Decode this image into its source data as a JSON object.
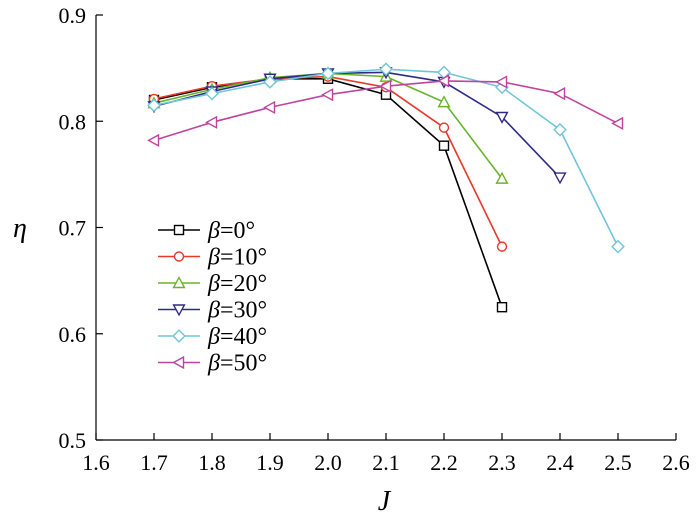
{
  "chart_data": {
    "type": "line",
    "xlabel": "J",
    "ylabel": "η",
    "xlim": [
      1.6,
      2.6
    ],
    "ylim": [
      0.5,
      0.9
    ],
    "xticks": [
      "1.6",
      "1.7",
      "1.8",
      "1.9",
      "2.0",
      "2.1",
      "2.2",
      "2.3",
      "2.4",
      "2.5",
      "2.6"
    ],
    "yticks": [
      "0.5",
      "0.6",
      "0.7",
      "0.8",
      "0.9"
    ],
    "grid": false,
    "legend_position": "left",
    "series": [
      {
        "name": "β=0°",
        "symbol": "β",
        "value_text": "=0°",
        "color": "#000000",
        "marker": "square",
        "x": [
          1.7,
          1.8,
          1.9,
          2.0,
          2.1,
          2.2,
          2.3
        ],
        "y": [
          0.82,
          0.832,
          0.84,
          0.84,
          0.825,
          0.777,
          0.625
        ]
      },
      {
        "name": "β=10°",
        "symbol": "β",
        "value_text": "=10°",
        "color": "#e8392b",
        "marker": "circle",
        "x": [
          1.7,
          1.8,
          1.9,
          2.0,
          2.1,
          2.2,
          2.3
        ],
        "y": [
          0.821,
          0.833,
          0.84,
          0.842,
          0.832,
          0.794,
          0.682
        ]
      },
      {
        "name": "β=20°",
        "symbol": "β",
        "value_text": "=20°",
        "color": "#6ab42d",
        "marker": "triangle-up",
        "x": [
          1.7,
          1.8,
          1.9,
          2.0,
          2.1,
          2.2,
          2.3
        ],
        "y": [
          0.817,
          0.83,
          0.841,
          0.845,
          0.842,
          0.818,
          0.746
        ]
      },
      {
        "name": "β=30°",
        "symbol": "β",
        "value_text": "=30°",
        "color": "#2e2b87",
        "marker": "triangle-down",
        "x": [
          1.7,
          1.8,
          1.9,
          2.0,
          2.1,
          2.2,
          2.3,
          2.4
        ],
        "y": [
          0.814,
          0.828,
          0.84,
          0.845,
          0.846,
          0.837,
          0.804,
          0.747
        ]
      },
      {
        "name": "β=40°",
        "symbol": "β",
        "value_text": "=40°",
        "color": "#6fc6d8",
        "marker": "diamond",
        "x": [
          1.7,
          1.8,
          1.9,
          2.0,
          2.1,
          2.2,
          2.3,
          2.4,
          2.5
        ],
        "y": [
          0.815,
          0.826,
          0.837,
          0.845,
          0.849,
          0.846,
          0.832,
          0.792,
          0.682
        ]
      },
      {
        "name": "β=50°",
        "symbol": "β",
        "value_text": "=50°",
        "color": "#c0449e",
        "marker": "triangle-left",
        "x": [
          1.7,
          1.8,
          1.9,
          2.0,
          2.1,
          2.2,
          2.3,
          2.4,
          2.5
        ],
        "y": [
          0.782,
          0.799,
          0.813,
          0.825,
          0.833,
          0.838,
          0.837,
          0.826,
          0.798
        ]
      }
    ]
  }
}
